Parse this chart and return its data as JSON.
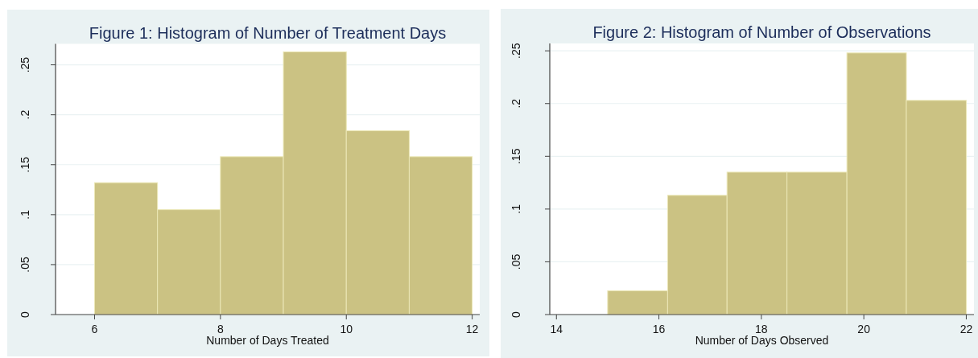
{
  "chart_data": [
    {
      "type": "histogram",
      "title": "Figure 1: Histogram of Number of Treatment Days",
      "xlabel": "Number of Days Treated",
      "bins": [
        6,
        7,
        8,
        9,
        10,
        11,
        12
      ],
      "values": [
        0.132,
        0.105,
        0.158,
        0.263,
        0.184,
        0.158
      ],
      "color": "#cbc283",
      "xlim": [
        5.38,
        12.12
      ],
      "xticks": [
        6,
        8,
        10,
        12
      ],
      "ylim": [
        0,
        0.271
      ],
      "yticks": [
        0,
        {
          "value": 0.05,
          "label": ".05"
        },
        {
          "value": 0.1,
          "label": ".1"
        },
        {
          "value": 0.15,
          "label": ".15"
        },
        {
          "value": 0.2,
          "label": ".2"
        },
        {
          "value": 0.25,
          "label": ".25"
        }
      ],
      "grid": "y"
    },
    {
      "type": "histogram",
      "title": "Figure 2: Histogram of Number of Observations",
      "xlabel": "Number of Days Observed",
      "bins": [
        15,
        16.17,
        17.33,
        18.5,
        19.67,
        20.83,
        22
      ],
      "values": [
        0.0226,
        0.113,
        0.135,
        0.135,
        0.248,
        0.203
      ],
      "color": "#cbc283",
      "xlim": [
        13.87,
        22.15
      ],
      "xticks": [
        14,
        16,
        18,
        20,
        22
      ],
      "ylim": [
        0,
        0.257
      ],
      "yticks": [
        0,
        {
          "value": 0.05,
          "label": ".05"
        },
        {
          "value": 0.1,
          "label": ".1"
        },
        {
          "value": 0.15,
          "label": ".15"
        },
        {
          "value": 0.2,
          "label": ".2"
        },
        {
          "value": 0.25,
          "label": ".25"
        }
      ],
      "grid": "y"
    }
  ]
}
